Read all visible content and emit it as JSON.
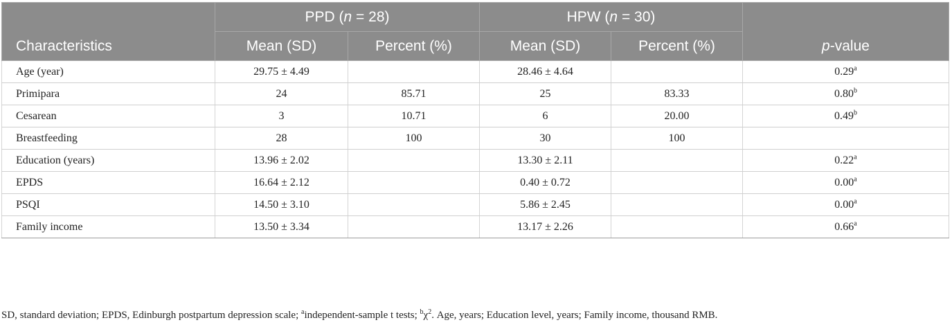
{
  "header": {
    "group1": "PPD (n = 28)",
    "group2": "HPW (n = 30)",
    "characteristics": "Characteristics",
    "mean_sd_1": "Mean (SD)",
    "percent_1": "Percent (%)",
    "mean_sd_2": "Mean (SD)",
    "percent_2": "Percent (%)",
    "pvalue": "p-value"
  },
  "rows": [
    {
      "label": "Age (year)",
      "ppd_mean": "29.75 ± 4.49",
      "ppd_pct": "",
      "hpw_mean": "28.46 ± 4.64",
      "hpw_pct": "",
      "p": "0.29",
      "sup": "a"
    },
    {
      "label": "Primipara",
      "ppd_mean": "24",
      "ppd_pct": "85.71",
      "hpw_mean": "25",
      "hpw_pct": "83.33",
      "p": "0.80",
      "sup": "b"
    },
    {
      "label": "Cesarean",
      "ppd_mean": "3",
      "ppd_pct": "10.71",
      "hpw_mean": "6",
      "hpw_pct": "20.00",
      "p": "0.49",
      "sup": "b"
    },
    {
      "label": "Breastfeeding",
      "ppd_mean": "28",
      "ppd_pct": "100",
      "hpw_mean": "30",
      "hpw_pct": "100",
      "p": "",
      "sup": ""
    },
    {
      "label": "Education (years)",
      "ppd_mean": "13.96 ± 2.02",
      "ppd_pct": "",
      "hpw_mean": "13.30 ± 2.11",
      "hpw_pct": "",
      "p": "0.22",
      "sup": "a"
    },
    {
      "label": "EPDS",
      "ppd_mean": "16.64 ± 2.12",
      "ppd_pct": "",
      "hpw_mean": "0.40 ± 0.72",
      "hpw_pct": "",
      "p": "0.00",
      "sup": "a"
    },
    {
      "label": "PSQI",
      "ppd_mean": "14.50 ± 3.10",
      "ppd_pct": "",
      "hpw_mean": "5.86 ± 2.45",
      "hpw_pct": "",
      "p": "0.00",
      "sup": "a"
    },
    {
      "label": "Family income",
      "ppd_mean": "13.50 ± 3.34",
      "ppd_pct": "",
      "hpw_mean": "13.17 ± 2.26",
      "hpw_pct": "",
      "p": "0.66",
      "sup": "a"
    }
  ],
  "footnote": "SD, standard deviation; EPDS, Edinburgh postpartum depression scale; aindependent-sample t tests; bχ2. Age, years; Education level, years; Family income, thousand RMB.",
  "footnote_parts": {
    "p1": "SD, standard deviation; EPDS, Edinburgh postpartum depression scale; ",
    "s1": "a",
    "p2": "independent-sample t tests; ",
    "s2": "b",
    "p3": "χ",
    "s3": "2",
    "p4": ". Age, years; Education level, years; Family income, thousand RMB."
  }
}
